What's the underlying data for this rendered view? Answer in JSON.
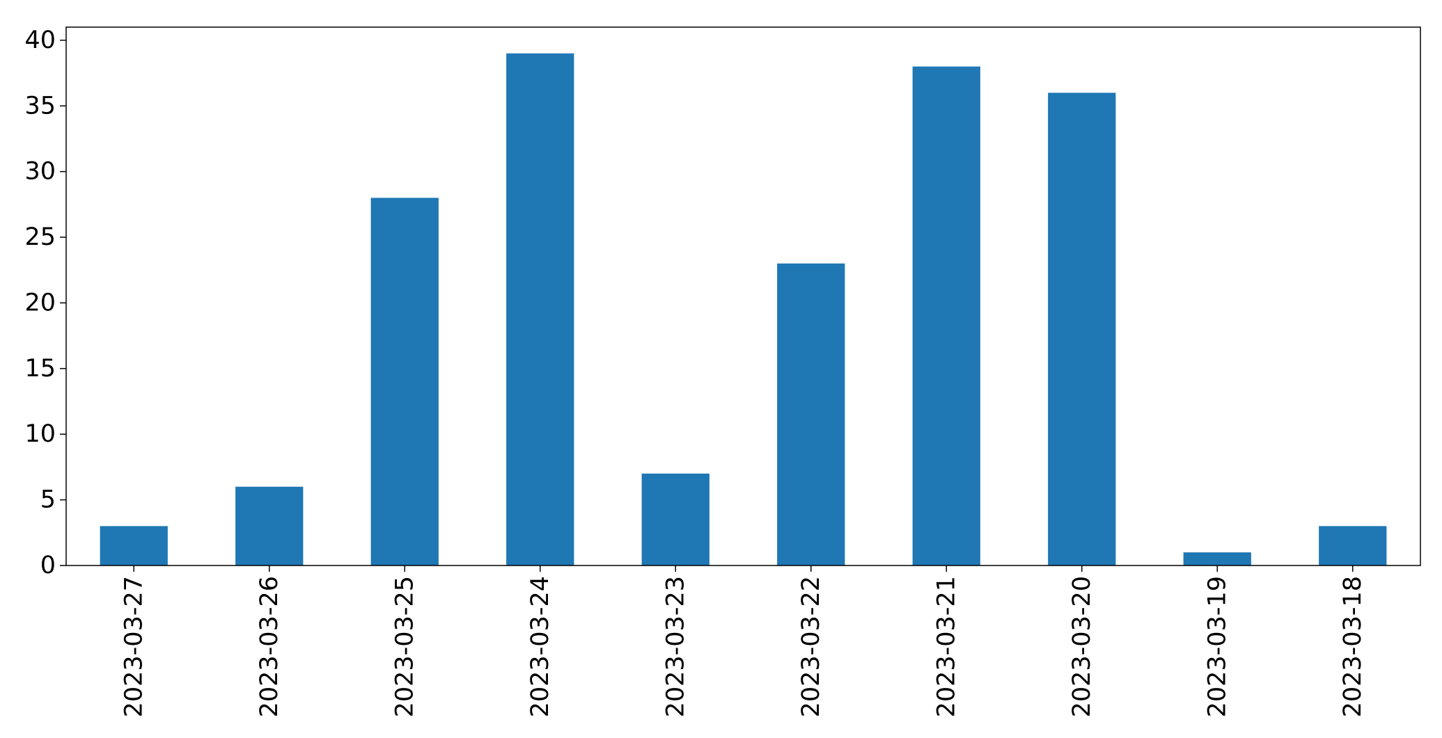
{
  "chart_data": {
    "type": "bar",
    "categories": [
      "2023-03-27",
      "2023-03-26",
      "2023-03-25",
      "2023-03-24",
      "2023-03-23",
      "2023-03-22",
      "2023-03-21",
      "2023-03-20",
      "2023-03-19",
      "2023-03-18"
    ],
    "values": [
      3,
      6,
      28,
      39,
      7,
      23,
      38,
      36,
      1,
      3
    ],
    "title": "",
    "xlabel": "",
    "ylabel": "",
    "ylim": [
      0,
      41
    ],
    "yticks": [
      0,
      5,
      10,
      15,
      20,
      25,
      30,
      35,
      40
    ],
    "grid": false,
    "legend": "none",
    "bar_color": "#1f77b4",
    "x_tick_rotation": "vertical"
  }
}
